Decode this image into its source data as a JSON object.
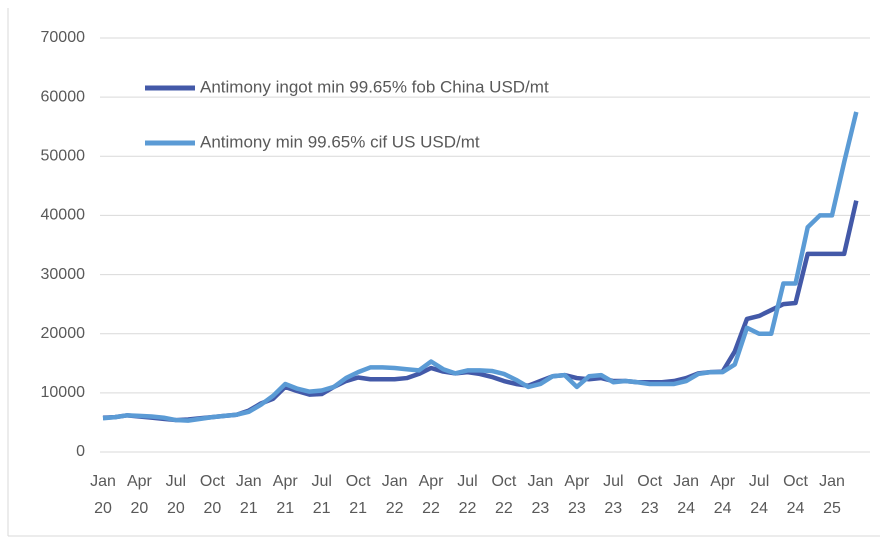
{
  "chart_data": {
    "type": "line",
    "categories": [
      "Jan 20",
      null,
      null,
      "Apr 20",
      null,
      null,
      "Jul 20",
      null,
      null,
      "Oct 20",
      null,
      null,
      "Jan 21",
      null,
      null,
      "Apr 21",
      null,
      null,
      "Jul 21",
      null,
      null,
      "Oct 21",
      null,
      null,
      "Jan 22",
      null,
      null,
      "Apr 22",
      null,
      null,
      "Jul 22",
      null,
      null,
      "Oct 22",
      null,
      null,
      "Jan 23",
      null,
      null,
      "Apr 23",
      null,
      null,
      "Jul 23",
      null,
      null,
      "Oct 23",
      null,
      null,
      "Jan 24",
      null,
      null,
      "Apr 24",
      null,
      null,
      "Jul 24",
      null,
      null,
      "Oct 24",
      null,
      null,
      "Jan 25",
      null,
      null
    ],
    "series": [
      {
        "name": "Antimony ingot min 99.65% fob China USD/mt",
        "color": "#4359a8",
        "values": [
          5800,
          5900,
          6200,
          6000,
          5800,
          5600,
          5400,
          5500,
          5700,
          5900,
          6100,
          6300,
          7000,
          8200,
          9000,
          11000,
          10300,
          9700,
          9800,
          11000,
          12000,
          12600,
          12300,
          12300,
          12300,
          12500,
          13200,
          14200,
          13600,
          13300,
          13500,
          13200,
          12700,
          12000,
          11500,
          11200,
          12000,
          12800,
          13000,
          12500,
          12300,
          12500,
          12000,
          12000,
          11800,
          11800,
          11800,
          12000,
          12500,
          13300,
          13500,
          13600,
          17000,
          22500,
          23000,
          24000,
          25000,
          25200,
          33500,
          33500,
          33500,
          33500,
          42500
        ]
      },
      {
        "name": "Antimony min 99.65% cif US USD/mt",
        "color": "#5b9bd5",
        "values": [
          5700,
          5900,
          6200,
          6100,
          6000,
          5800,
          5400,
          5300,
          5600,
          5900,
          6100,
          6300,
          6800,
          8000,
          9500,
          11500,
          10700,
          10200,
          10400,
          11000,
          12500,
          13500,
          14300,
          14300,
          14200,
          14000,
          13800,
          15300,
          14000,
          13300,
          13800,
          13800,
          13700,
          13200,
          12200,
          11000,
          11500,
          12800,
          13000,
          11000,
          12800,
          13000,
          11800,
          12000,
          11800,
          11500,
          11500,
          11500,
          12000,
          13200,
          13500,
          13500,
          14800,
          21000,
          20000,
          20000,
          28500,
          28500,
          38000,
          40000,
          40000,
          49000,
          57500
        ]
      }
    ],
    "ylim": [
      0,
      70000
    ],
    "yticks": [
      0,
      10000,
      20000,
      30000,
      40000,
      50000,
      60000,
      70000
    ],
    "grid": true
  }
}
